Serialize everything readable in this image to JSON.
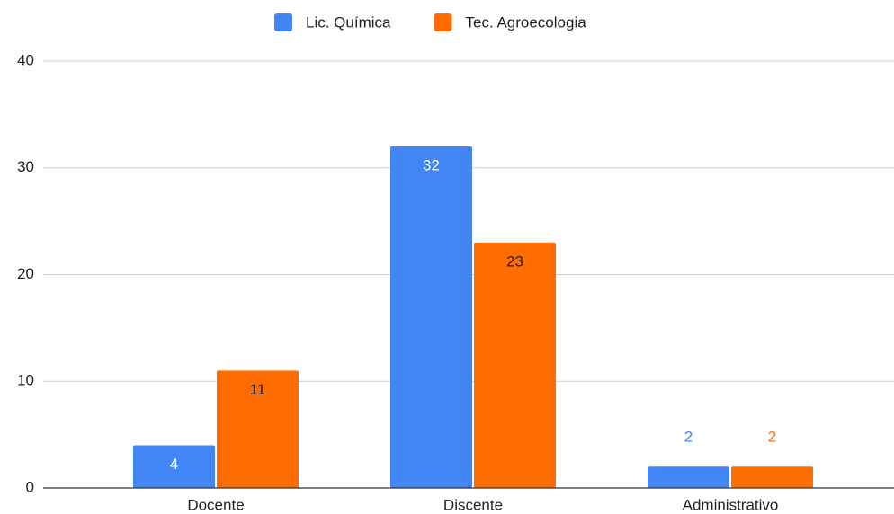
{
  "chart_data": {
    "type": "bar",
    "categories": [
      "Docente",
      "Discente",
      "Administrativo"
    ],
    "series": [
      {
        "name": "Lic. Química",
        "color": "#4285f4",
        "values": [
          4,
          32,
          2
        ]
      },
      {
        "name": "Tec. Agroecologia",
        "color": "#ff6d01",
        "values": [
          11,
          23,
          2
        ]
      }
    ],
    "ylim": [
      0,
      40
    ],
    "yticks": [
      0,
      10,
      20,
      30,
      40
    ],
    "grid": true,
    "legend": "top"
  }
}
